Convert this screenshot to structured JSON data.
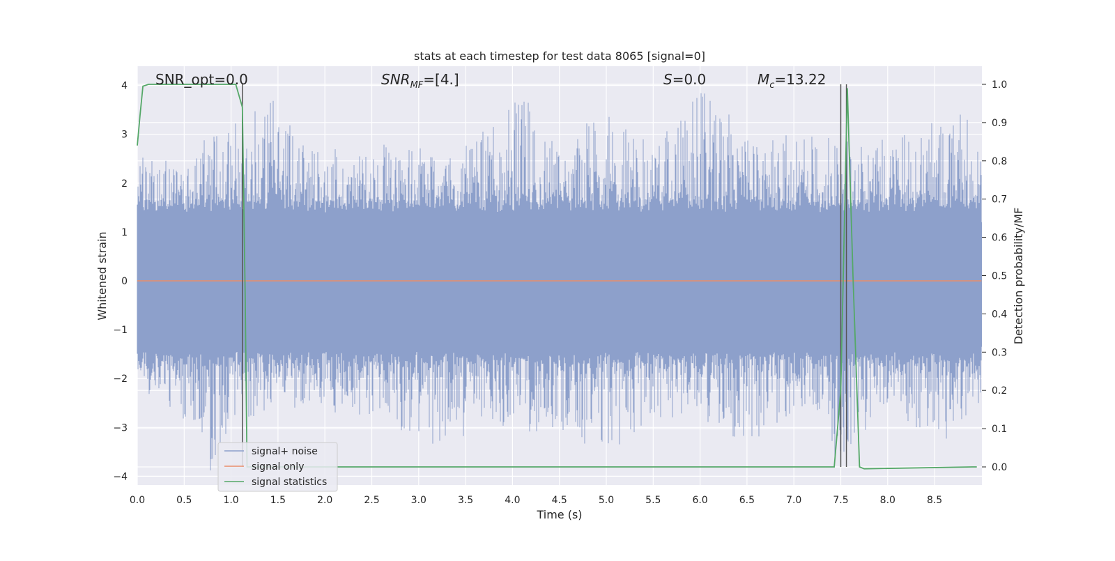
{
  "chart_data": {
    "type": "line",
    "title": "stats at each timestep for test data 8065 [signal=0]",
    "xlabel": "Time (s)",
    "ylabel": "Whitened strain",
    "y2label": "Detection probability/MF",
    "xlim": [
      0.0,
      9.0
    ],
    "ylim": [
      -4.2,
      4.4
    ],
    "y2lim": [
      -0.045,
      1.045
    ],
    "xticks": [
      "0.0",
      "0.5",
      "1.0",
      "1.5",
      "2.0",
      "2.5",
      "3.0",
      "3.5",
      "4.0",
      "4.5",
      "5.0",
      "5.5",
      "6.0",
      "6.5",
      "7.0",
      "7.5",
      "8.0",
      "8.5"
    ],
    "xtick_values": [
      0.0,
      0.5,
      1.0,
      1.5,
      2.0,
      2.5,
      3.0,
      3.5,
      4.0,
      4.5,
      5.0,
      5.5,
      6.0,
      6.5,
      7.0,
      7.5,
      8.0,
      8.5
    ],
    "yticks": [
      "4",
      "3",
      "2",
      "1",
      "0",
      "−1",
      "−2",
      "−3",
      "−4"
    ],
    "ytick_values": [
      4,
      3,
      2,
      1,
      0,
      -1,
      -2,
      -3,
      -4
    ],
    "y2ticks": [
      "1.0",
      "0.9",
      "0.8",
      "0.7",
      "0.6",
      "0.5",
      "0.4",
      "0.3",
      "0.2",
      "0.1",
      "0.0"
    ],
    "y2tick_values": [
      1.0,
      0.9,
      0.8,
      0.7,
      0.6,
      0.5,
      0.4,
      0.3,
      0.2,
      0.1,
      0.0
    ],
    "grid": true,
    "legend_placement": "lower-left",
    "annotations": {
      "snr_opt": "SNR_opt=0.0",
      "snr_mf_prefix": "SNR",
      "snr_mf_sub": "MF",
      "snr_mf_value": "=[4.]",
      "s_symbol": "S",
      "s_value": "=0.0",
      "mc_symbol": "M",
      "mc_sub": "c",
      "mc_value": "=13.22"
    },
    "series": [
      {
        "name": "signal+ noise",
        "color": "#8da0cb",
        "kind": "noise",
        "envelope_upper": [
          [
            0.0,
            2.4
          ],
          [
            0.5,
            2.3
          ],
          [
            0.75,
            2.9
          ],
          [
            1.0,
            3.3
          ],
          [
            1.5,
            3.7
          ],
          [
            2.0,
            2.5
          ],
          [
            2.5,
            2.6
          ],
          [
            3.0,
            2.7
          ],
          [
            3.5,
            2.6
          ],
          [
            4.0,
            3.5
          ],
          [
            4.2,
            3.6
          ],
          [
            4.5,
            2.6
          ],
          [
            5.0,
            3.4
          ],
          [
            5.5,
            2.7
          ],
          [
            6.0,
            3.8
          ],
          [
            6.5,
            2.9
          ],
          [
            7.0,
            2.8
          ],
          [
            7.5,
            2.9
          ],
          [
            8.0,
            2.8
          ],
          [
            8.5,
            3.0
          ],
          [
            9.0,
            3.45
          ]
        ],
        "envelope_lower": [
          [
            0.0,
            -2.0
          ],
          [
            0.5,
            -2.6
          ],
          [
            0.75,
            -3.8
          ],
          [
            1.0,
            -3.0
          ],
          [
            1.5,
            -2.4
          ],
          [
            2.0,
            -2.5
          ],
          [
            2.5,
            -2.6
          ],
          [
            3.0,
            -3.3
          ],
          [
            3.5,
            -3.1
          ],
          [
            4.0,
            -2.8
          ],
          [
            4.5,
            -3.1
          ],
          [
            5.0,
            -3.3
          ],
          [
            5.5,
            -3.0
          ],
          [
            6.0,
            -2.5
          ],
          [
            6.5,
            -3.4
          ],
          [
            7.0,
            -2.6
          ],
          [
            7.5,
            -3.5
          ],
          [
            8.0,
            -2.5
          ],
          [
            8.5,
            -3.4
          ],
          [
            9.0,
            -2.3
          ]
        ]
      },
      {
        "name": "signal only",
        "color": "#e98d6b",
        "points": [
          [
            0.0,
            0.0
          ],
          [
            9.0,
            0.0
          ]
        ]
      },
      {
        "name": "signal statistics",
        "color": "#55a868",
        "axis": "right",
        "points": [
          [
            0.0,
            0.84
          ],
          [
            0.03,
            0.92
          ],
          [
            0.06,
            0.995
          ],
          [
            0.12,
            1.0
          ],
          [
            1.05,
            1.0
          ],
          [
            1.12,
            0.94
          ],
          [
            1.15,
            0.45
          ],
          [
            1.17,
            0.0
          ],
          [
            9.0,
            0.0
          ]
        ],
        "points_detail": [
          [
            1.17,
            0.0
          ],
          [
            7.43,
            0.0
          ],
          [
            7.5,
            0.2
          ],
          [
            7.57,
            0.99
          ],
          [
            7.63,
            0.5
          ],
          [
            7.7,
            0.0
          ],
          [
            7.75,
            -0.005
          ],
          [
            8.9,
            0.0
          ],
          [
            8.95,
            0.0
          ]
        ]
      }
    ],
    "vertical_markers": [
      1.12,
      7.5,
      7.56
    ]
  }
}
